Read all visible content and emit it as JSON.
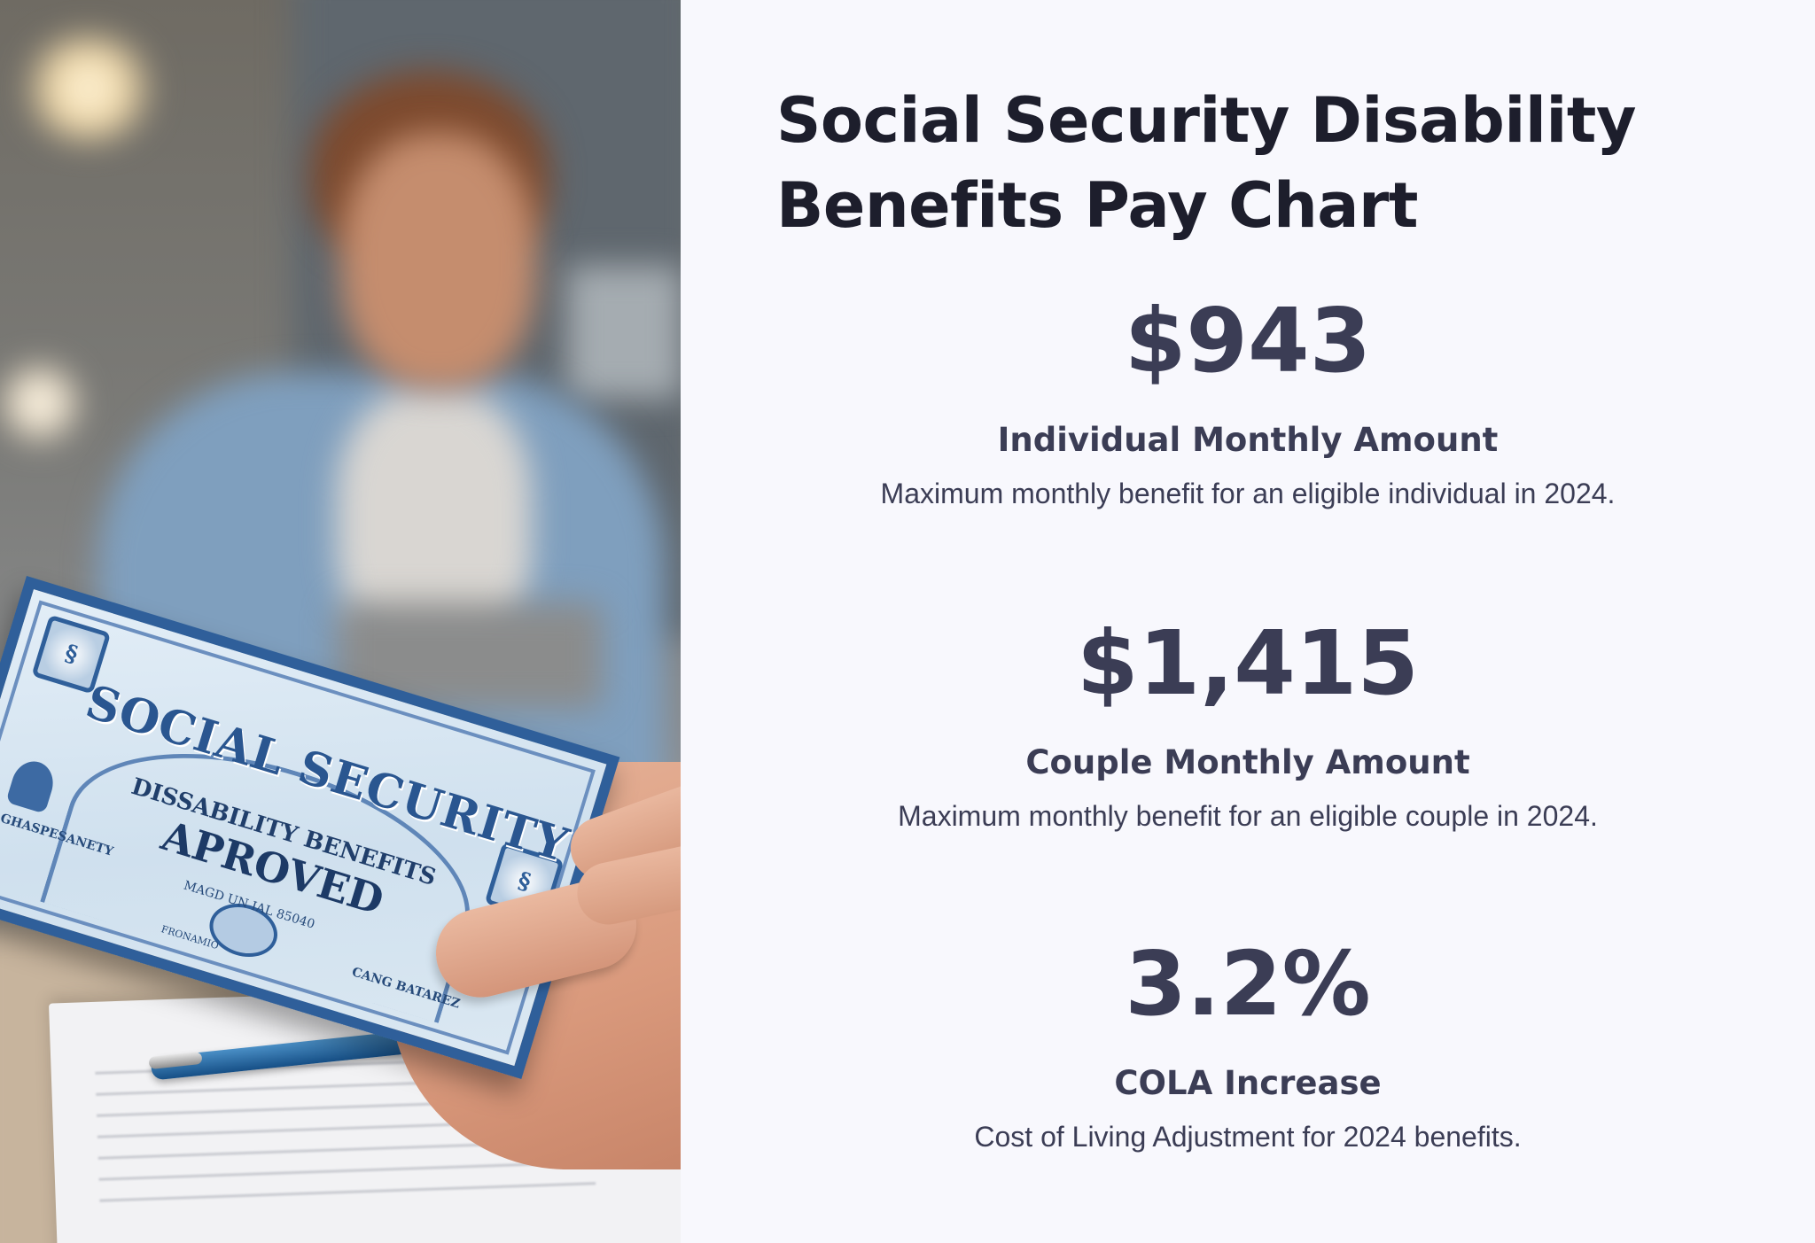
{
  "page": {
    "title": "Social Security Disability Benefits Pay Chart"
  },
  "photo": {
    "card_text": {
      "header": "SOCIAL SECURITY",
      "line1": "DISSABILITY BENEFITS",
      "line2": "APROVED",
      "left_small": "GHASPESANETY",
      "right_small": "CANG BATAREZ",
      "center_small": "MAGD UN IAL 85040",
      "bottom_small": "FRONAMIO"
    }
  },
  "stats": [
    {
      "value": "$943",
      "label": "Individual Monthly Amount",
      "description": "Maximum monthly benefit for an eligible individual in 2024."
    },
    {
      "value": "$1,415",
      "label": "Couple Monthly Amount",
      "description": "Maximum monthly benefit for an eligible couple in 2024."
    },
    {
      "value": "3.2%",
      "label": "COLA Increase",
      "description": "Cost of Living Adjustment for 2024 benefits."
    }
  ],
  "colors": {
    "background": "#f8f8fd",
    "title": "#1d1e2c",
    "stat_text": "#3b3d55",
    "card_blue": "#2f5f9a"
  }
}
